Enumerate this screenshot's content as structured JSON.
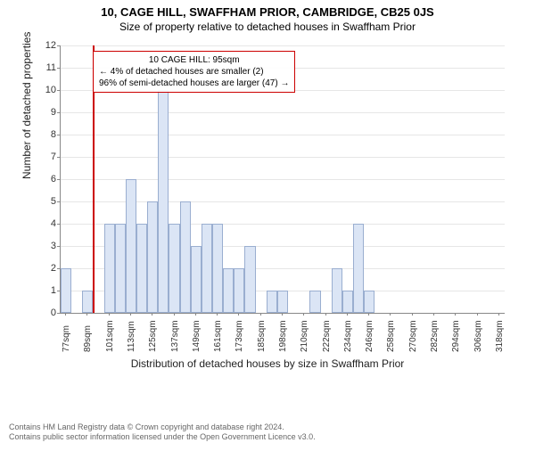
{
  "title_main": "10, CAGE HILL, SWAFFHAM PRIOR, CAMBRIDGE, CB25 0JS",
  "title_sub": "Size of property relative to detached houses in Swaffham Prior",
  "ylabel": "Number of detached properties",
  "xlabel": "Distribution of detached houses by size in Swaffham Prior",
  "ylim": [
    0,
    12
  ],
  "ytick_step": 1,
  "xticks": [
    "77sqm",
    "89sqm",
    "101sqm",
    "113sqm",
    "125sqm",
    "137sqm",
    "149sqm",
    "161sqm",
    "173sqm",
    "185sqm",
    "198sqm",
    "210sqm",
    "222sqm",
    "234sqm",
    "246sqm",
    "258sqm",
    "270sqm",
    "282sqm",
    "294sqm",
    "306sqm",
    "318sqm"
  ],
  "n_slots": 41,
  "bars": [
    {
      "slot": 0,
      "h": 2
    },
    {
      "slot": 2,
      "h": 1
    },
    {
      "slot": 4,
      "h": 4
    },
    {
      "slot": 5,
      "h": 4
    },
    {
      "slot": 6,
      "h": 6
    },
    {
      "slot": 7,
      "h": 4
    },
    {
      "slot": 8,
      "h": 5
    },
    {
      "slot": 9,
      "h": 10
    },
    {
      "slot": 10,
      "h": 4
    },
    {
      "slot": 11,
      "h": 5
    },
    {
      "slot": 12,
      "h": 3
    },
    {
      "slot": 13,
      "h": 4
    },
    {
      "slot": 14,
      "h": 4
    },
    {
      "slot": 15,
      "h": 2
    },
    {
      "slot": 16,
      "h": 2
    },
    {
      "slot": 17,
      "h": 3
    },
    {
      "slot": 19,
      "h": 1
    },
    {
      "slot": 20,
      "h": 1
    },
    {
      "slot": 23,
      "h": 1
    },
    {
      "slot": 25,
      "h": 2
    },
    {
      "slot": 26,
      "h": 1
    },
    {
      "slot": 27,
      "h": 4
    },
    {
      "slot": 28,
      "h": 1
    }
  ],
  "marker_slot": 3,
  "marker_color": "#cc0000",
  "bar_fill": "#dbe5f5",
  "bar_border": "#9aaed0",
  "grid_color": "#e6e6e6",
  "annot": {
    "line1": "10 CAGE HILL: 95sqm",
    "line2": "← 4% of detached houses are smaller (2)",
    "line3": "96% of semi-detached houses are larger (47) →"
  },
  "footer1": "Contains HM Land Registry data © Crown copyright and database right 2024.",
  "footer2": "Contains public sector information licensed under the Open Government Licence v3.0."
}
